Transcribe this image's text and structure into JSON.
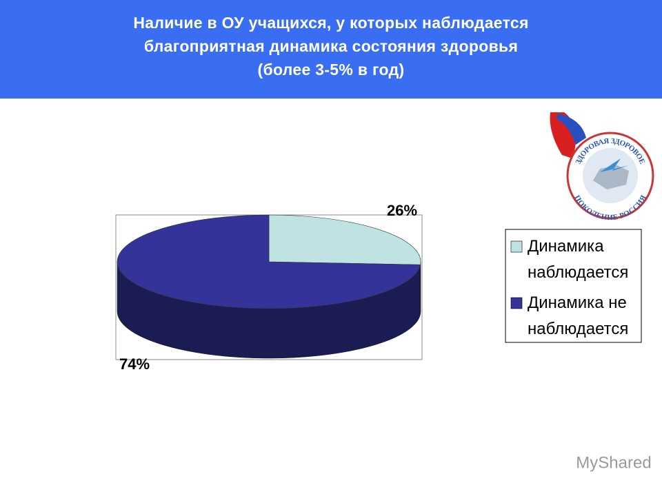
{
  "chart_data": {
    "type": "pie3d",
    "title": "Наличие в ОУ учащихся, у которых наблюдается\nблагоприятная динамика состояния здоровья\n(более 3-5% в год)",
    "categories": [
      "Динамика наблюдается",
      "Динамика не наблюдается"
    ],
    "values": [
      26,
      74
    ],
    "value_labels": [
      "26%",
      "74%"
    ],
    "colors": [
      "#bfe3e3",
      "#333399"
    ],
    "legend": "right"
  },
  "emblem": {
    "top": "ЗДОРОВАЯ ЗДОРОВОЕ",
    "bottom": "ПОКОЛЕНИЕ РОССИЯ"
  },
  "watermark": "MyShared"
}
